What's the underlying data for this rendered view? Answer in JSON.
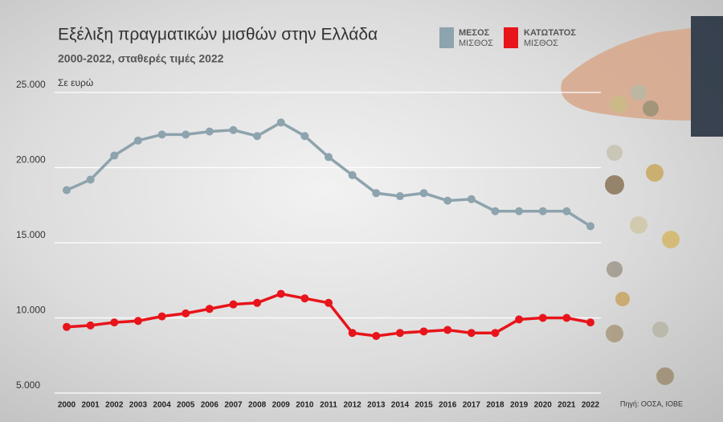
{
  "chart_data": {
    "type": "line",
    "title": "Εξέλιξη πραγματικών μισθών στην Ελλάδα",
    "subtitle": "2000-2022, σταθερές τιμές 2022",
    "y_label": "Σε ευρώ",
    "source": "Πηγή: ΟΟΣΑ, ΙΟΒΕ",
    "categories": [
      "2000",
      "2001",
      "2002",
      "2003",
      "2004",
      "2005",
      "2006",
      "2007",
      "2008",
      "2009",
      "2010",
      "2011",
      "2012",
      "2013",
      "2014",
      "2015",
      "2016",
      "2017",
      "2018",
      "2019",
      "2020",
      "2021",
      "2022"
    ],
    "series": [
      {
        "name": "ΜΕΣΟΣ ΜΙΣΘΟΣ",
        "color": "#8da3ad",
        "values": [
          18500,
          19200,
          20800,
          21800,
          22200,
          22200,
          22400,
          22500,
          22100,
          23000,
          22100,
          20700,
          19500,
          18300,
          18100,
          18300,
          17800,
          17900,
          17100,
          17100,
          17100,
          17100,
          16100
        ]
      },
      {
        "name": "ΚΑΤΩΤΑΤΟΣ ΜΙΣΘΟΣ",
        "color": "#e8141b",
        "values": [
          9400,
          9500,
          9700,
          9800,
          10100,
          10300,
          10600,
          10900,
          11000,
          11600,
          11300,
          11000,
          9000,
          8800,
          9000,
          9100,
          9200,
          9000,
          9000,
          9900,
          10000,
          10000,
          9700
        ]
      }
    ],
    "ylim": [
      5000,
      25000
    ],
    "yticks": [
      {
        "value": 5000,
        "label": "5.000"
      },
      {
        "value": 10000,
        "label": "10.000"
      },
      {
        "value": 15000,
        "label": "15.000"
      },
      {
        "value": 20000,
        "label": "20.000"
      },
      {
        "value": 25000,
        "label": "25.000"
      }
    ],
    "grid": true
  }
}
